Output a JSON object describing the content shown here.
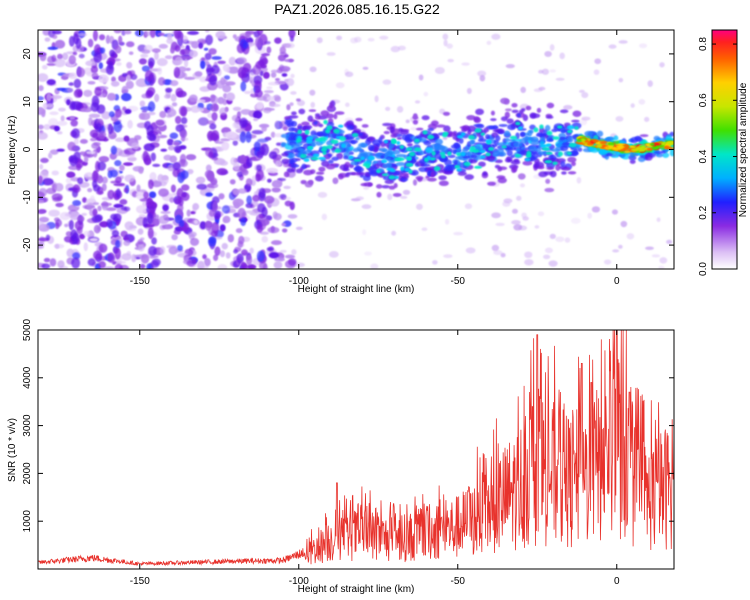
{
  "title": "PAZ1.2026.085.16.15.G22",
  "chart_data": [
    {
      "type": "heatmap",
      "xlabel": "Height of straight line (km)",
      "ylabel": "Frequency (Hz)",
      "xlim": [
        -182,
        18
      ],
      "ylim": [
        -25,
        25
      ],
      "xticks": [
        -150,
        -100,
        -50,
        0
      ],
      "yticks": [
        -20,
        -10,
        0,
        10,
        20
      ],
      "colorbar": {
        "label": "Normalized spectral amplitude",
        "range": [
          0,
          0.85
        ],
        "ticks": [
          0.0,
          0.2,
          0.4,
          0.6,
          0.8
        ]
      },
      "ridge": [
        {
          "x": -100,
          "f": 1
        },
        {
          "x": -90,
          "f": 2
        },
        {
          "x": -80,
          "f": -1
        },
        {
          "x": -70,
          "f": -2
        },
        {
          "x": -60,
          "f": 0
        },
        {
          "x": -50,
          "f": -1
        },
        {
          "x": -40,
          "f": 1
        },
        {
          "x": -30,
          "f": 2
        },
        {
          "x": -20,
          "f": 1
        },
        {
          "x": -12,
          "f": 2
        },
        {
          "x": -5,
          "f": 1
        },
        {
          "x": 5,
          "f": 0
        },
        {
          "x": 15,
          "f": 1
        }
      ]
    },
    {
      "type": "line",
      "xlabel": "Height of straight line (km)",
      "ylabel": "SNR (10 * v/v)",
      "xlim": [
        -182,
        18
      ],
      "ylim": [
        0,
        5000
      ],
      "xticks": [
        -150,
        -100,
        -50,
        0
      ],
      "yticks": [
        1000,
        2000,
        3000,
        4000,
        5000
      ],
      "color": "#e8322c",
      "envelope": [
        {
          "x": -182,
          "y": 150
        },
        {
          "x": -165,
          "y": 260
        },
        {
          "x": -150,
          "y": 120
        },
        {
          "x": -120,
          "y": 180
        },
        {
          "x": -105,
          "y": 200
        },
        {
          "x": -98,
          "y": 400
        },
        {
          "x": -90,
          "y": 900
        },
        {
          "x": -80,
          "y": 1100
        },
        {
          "x": -70,
          "y": 900
        },
        {
          "x": -60,
          "y": 1100
        },
        {
          "x": -50,
          "y": 1300
        },
        {
          "x": -40,
          "y": 1800
        },
        {
          "x": -30,
          "y": 2600
        },
        {
          "x": -25,
          "y": 3200
        },
        {
          "x": -15,
          "y": 2700
        },
        {
          "x": -10,
          "y": 2900
        },
        {
          "x": -5,
          "y": 3300
        },
        {
          "x": 0,
          "y": 4200
        },
        {
          "x": 5,
          "y": 2600
        },
        {
          "x": 10,
          "y": 2200
        },
        {
          "x": 18,
          "y": 2700
        }
      ],
      "peaks": [
        {
          "x": -25,
          "y": 4900
        },
        {
          "x": -11,
          "y": 4300
        },
        {
          "x": 0,
          "y": 5000
        },
        {
          "x": -8,
          "y": 3900
        },
        {
          "x": 4,
          "y": 3700
        },
        {
          "x": -88,
          "y": 1800
        }
      ]
    }
  ]
}
